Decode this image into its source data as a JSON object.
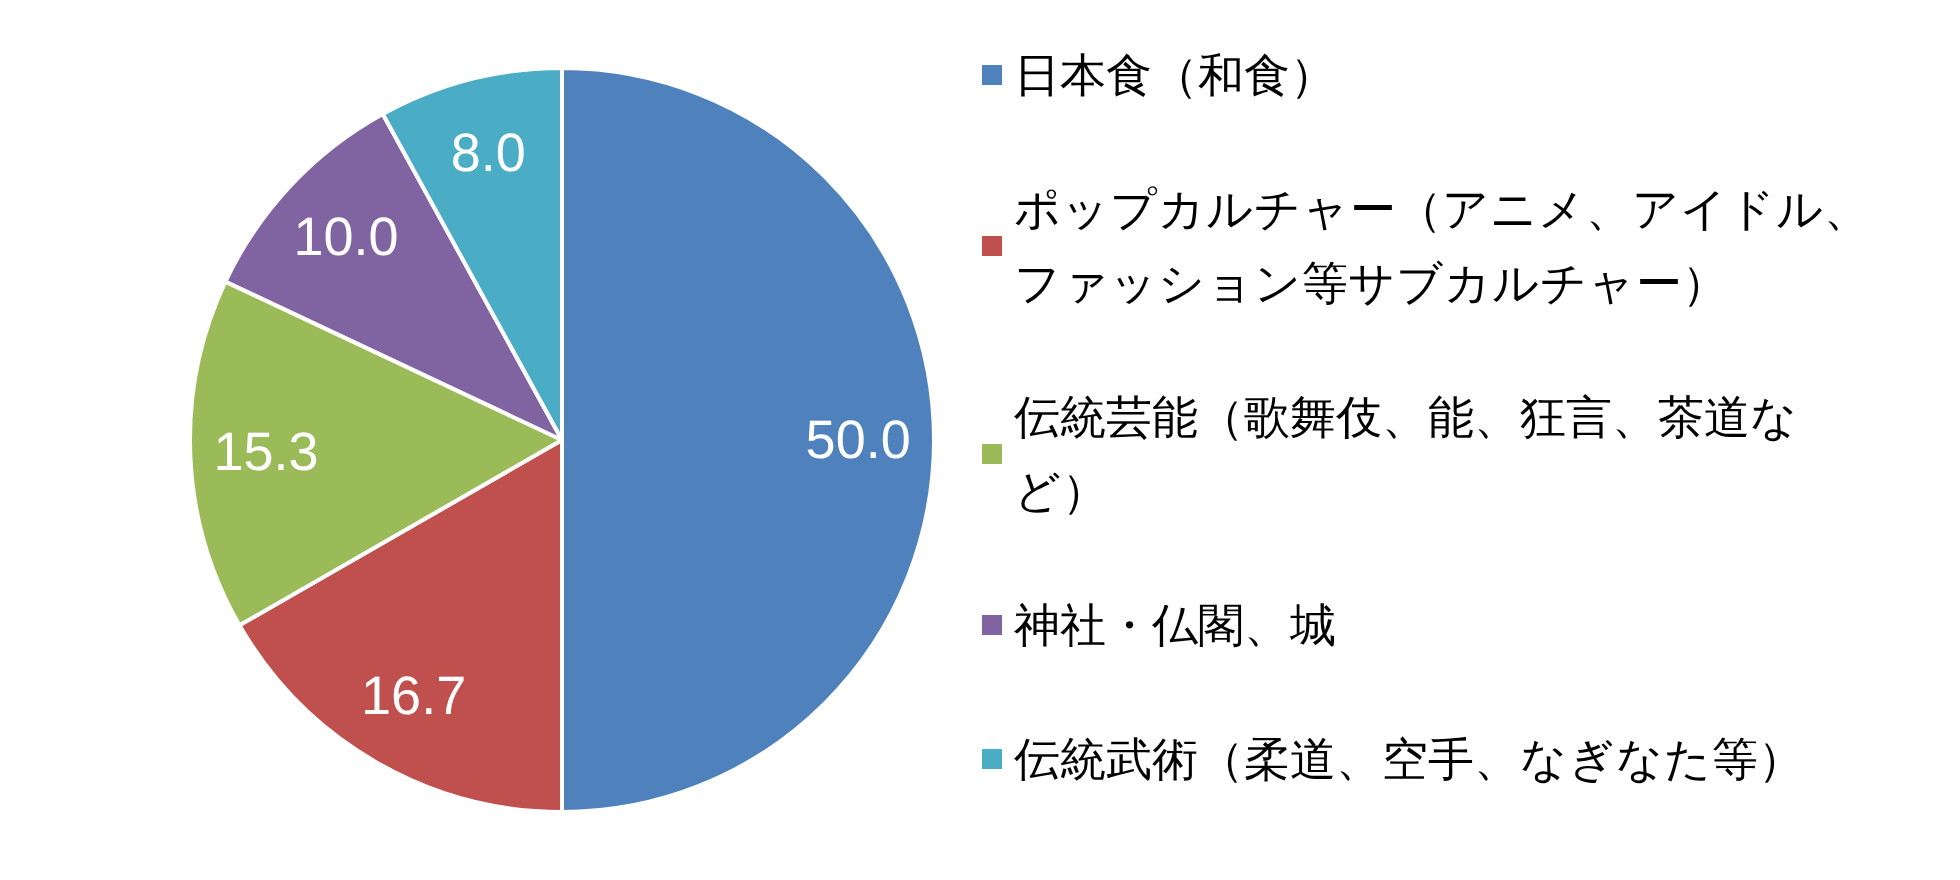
{
  "chart_data": {
    "type": "pie",
    "categories": [
      "日本食（和食）",
      "ポップカルチャー（アニメ、アイドル、ファッション等サブカルチャー）",
      "伝統芸能（歌舞伎、能、狂言、茶道など）",
      "神社・仏閣、城",
      "伝統武術（柔道、空手、なぎなた等）"
    ],
    "values": [
      50.0,
      16.7,
      15.3,
      10.0,
      8.0
    ],
    "value_labels": [
      "50.0",
      "16.7",
      "15.3",
      "10.0",
      "8.0"
    ],
    "colors": [
      "#4f81bd",
      "#c0504d",
      "#9bbb59",
      "#8064a2",
      "#4bacc6"
    ],
    "legend": "right"
  }
}
